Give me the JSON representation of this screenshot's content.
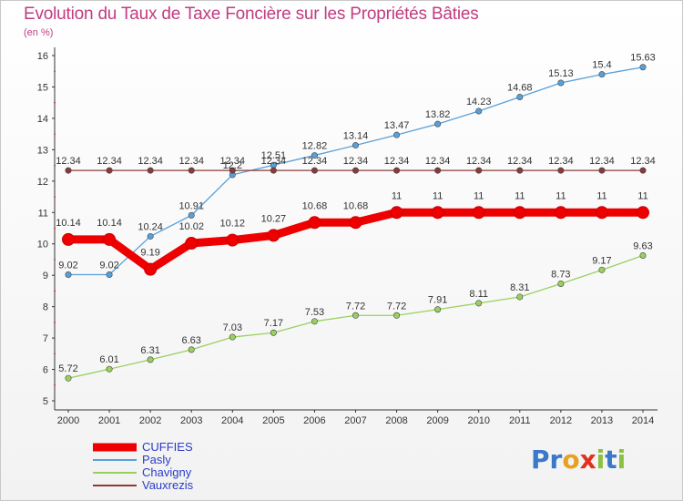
{
  "title": "Evolution du Taux de Taxe Foncière sur les Propriétés Bâties",
  "unit": "(en %)",
  "logo": {
    "text": "Proxiti",
    "letters": [
      "P",
      "r",
      "o",
      "x",
      "i",
      "t",
      "i"
    ],
    "colors": [
      "#3a78c8",
      "#3a78c8",
      "#e8a020",
      "#e03020",
      "#8cc040",
      "#3a78c8",
      "#8cc040"
    ]
  },
  "chart_data": {
    "type": "line",
    "title": "Evolution du Taux de Taxe Foncière sur les Propriétés Bâties",
    "ylabel": "(en %)",
    "xlabel": "",
    "x": [
      2000,
      2001,
      2002,
      2003,
      2004,
      2005,
      2006,
      2007,
      2008,
      2009,
      2010,
      2011,
      2012,
      2013,
      2014
    ],
    "ylim": [
      5,
      16
    ],
    "yticks": [
      5,
      6,
      7,
      8,
      9,
      10,
      11,
      12,
      13,
      14,
      15,
      16
    ],
    "grid": false,
    "legend": "bottom-left",
    "series": [
      {
        "name": "CUFFIES",
        "color": "#ee0000",
        "style": "thick",
        "values": [
          10.14,
          10.14,
          9.19,
          10.02,
          10.12,
          10.27,
          10.68,
          10.68,
          11,
          11,
          11,
          11,
          11,
          11,
          11
        ],
        "labels": [
          "10.14",
          "10.14",
          "9.19",
          "10.02",
          "10.12",
          "10.27",
          "10.68",
          "10.68",
          "11",
          "11",
          "11",
          "11",
          "11",
          "11",
          "11"
        ]
      },
      {
        "name": "Pasly",
        "color": "#5aa0d8",
        "style": "thin",
        "values": [
          9.02,
          9.02,
          10.24,
          10.91,
          12.2,
          12.51,
          12.82,
          13.14,
          13.47,
          13.82,
          14.23,
          14.68,
          15.13,
          15.4,
          15.63
        ],
        "labels": [
          "9.02",
          "9.02",
          "10.24",
          "10.91",
          "12.2",
          "12.51",
          "12.82",
          "13.14",
          "13.47",
          "13.82",
          "14.23",
          "14.68",
          "15.13",
          "15.4",
          "15.63"
        ]
      },
      {
        "name": "Chavigny",
        "color": "#9ad060",
        "style": "thin",
        "values": [
          5.72,
          6.01,
          6.31,
          6.63,
          7.03,
          7.17,
          7.53,
          7.72,
          7.72,
          7.91,
          8.11,
          8.31,
          8.73,
          9.17,
          9.63
        ],
        "labels": [
          "5.72",
          "6.01",
          "6.31",
          "6.63",
          "7.03",
          "7.17",
          "7.53",
          "7.72",
          "7.72",
          "7.91",
          "8.11",
          "8.31",
          "8.73",
          "9.17",
          "9.63"
        ]
      },
      {
        "name": "Vauxrezis",
        "color": "#8a3a3a",
        "style": "thin",
        "values": [
          12.34,
          12.34,
          12.34,
          12.34,
          12.34,
          12.34,
          12.34,
          12.34,
          12.34,
          12.34,
          12.34,
          12.34,
          12.34,
          12.34,
          12.34
        ],
        "labels": [
          "12.34",
          "12.34",
          "12.34",
          "12.34",
          "12.34",
          "12.34",
          "12.34",
          "12.34",
          "12.34",
          "12.34",
          "12.34",
          "12.34",
          "12.34",
          "12.34",
          "12.34"
        ]
      }
    ]
  }
}
